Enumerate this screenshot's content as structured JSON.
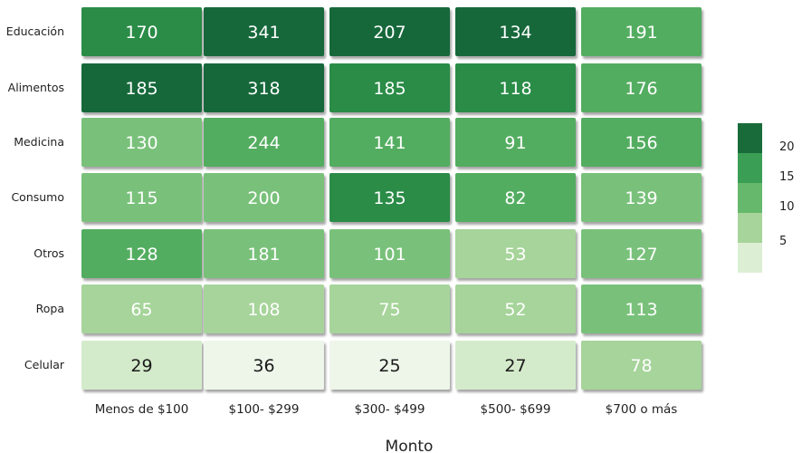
{
  "chart_data": {
    "type": "heatmap",
    "title": "",
    "xlabel": "Monto",
    "ylabel": "",
    "columns": [
      "Menos de $100",
      "$100- $299",
      "$300- $499",
      "$500- $699",
      "$700 o más"
    ],
    "rows": [
      "Educación",
      "Alimentos",
      "Medicina",
      "Consumo",
      "Otros",
      "Ropa",
      "Celular"
    ],
    "values": [
      [
        170,
        341,
        207,
        134,
        191
      ],
      [
        185,
        318,
        185,
        118,
        176
      ],
      [
        130,
        244,
        141,
        91,
        156
      ],
      [
        115,
        200,
        135,
        82,
        139
      ],
      [
        128,
        181,
        101,
        53,
        127
      ],
      [
        65,
        108,
        75,
        52,
        113
      ],
      [
        29,
        36,
        25,
        27,
        78
      ]
    ],
    "color_levels": [
      [
        4,
        5,
        5,
        5,
        3
      ],
      [
        5,
        5,
        4,
        4,
        3
      ],
      [
        2,
        3,
        3,
        3,
        3
      ],
      [
        2,
        2,
        4,
        3,
        2
      ],
      [
        3,
        2,
        2,
        1,
        2
      ],
      [
        1,
        1,
        1,
        1,
        2
      ],
      [
        0,
        -1,
        -1,
        0,
        1
      ]
    ],
    "legend": {
      "ticks": [
        "20",
        "15",
        "10",
        "5"
      ],
      "colors": [
        "#196c3a",
        "#3a9e55",
        "#66b96c",
        "#a6d49a",
        "#dcefd4"
      ]
    },
    "palette": {
      "-1": "#eef6ea",
      "0": "#d4ebcb",
      "1": "#a6d49a",
      "2": "#79c17a",
      "3": "#52ad60",
      "4": "#2a8c46",
      "5": "#16673a"
    }
  }
}
